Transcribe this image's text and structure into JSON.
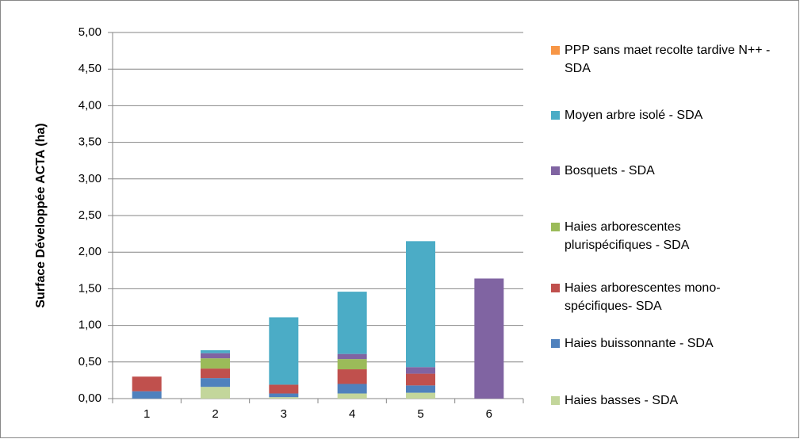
{
  "chart_data": {
    "type": "stacked_bar",
    "y_label": "Surface Développée ACTA (ha)",
    "categories": [
      "1",
      "2",
      "3",
      "4",
      "5",
      "6"
    ],
    "ylim": [
      0,
      5
    ],
    "yticks": [
      {
        "value": 0,
        "label": "0,00"
      },
      {
        "value": 0.5,
        "label": "0,50"
      },
      {
        "value": 1,
        "label": "1,00"
      },
      {
        "value": 1.5,
        "label": "1,50"
      },
      {
        "value": 2,
        "label": "2,00"
      },
      {
        "value": 2.5,
        "label": "2,50"
      },
      {
        "value": 3,
        "label": "3,00"
      },
      {
        "value": 3.5,
        "label": "3,50"
      },
      {
        "value": 4,
        "label": "4,00"
      },
      {
        "value": 4.5,
        "label": "4,50"
      },
      {
        "value": 5,
        "label": "5,00"
      }
    ],
    "grid": true,
    "legend": "right",
    "series": [
      {
        "name": "Haies basses - SDA",
        "color": "#c3d69b",
        "values": [
          0,
          0.16,
          0.02,
          0.07,
          0.08,
          0
        ]
      },
      {
        "name": "Haies buissonnante - SDA",
        "color": "#4f81bd",
        "values": [
          0.1,
          0.12,
          0.05,
          0.13,
          0.1,
          0
        ]
      },
      {
        "name": "Haies arborescentes mono-spécifiques- SDA",
        "color": "#c0504d",
        "values": [
          0.2,
          0.13,
          0.12,
          0.2,
          0.16,
          0
        ]
      },
      {
        "name": "Haies arborescentes plurispécifiques - SDA",
        "color": "#9bbb59",
        "values": [
          0,
          0.14,
          0,
          0.14,
          0,
          0
        ]
      },
      {
        "name": "Bosquets - SDA",
        "color": "#8064a2",
        "values": [
          0,
          0.07,
          0,
          0.07,
          0.09,
          1.64
        ]
      },
      {
        "name": "Moyen arbre isolé - SDA",
        "color": "#4bacc6",
        "values": [
          0,
          0.04,
          0.92,
          0.85,
          1.72,
          0
        ]
      },
      {
        "name": "PPP sans maet recolte tardive N++ - SDA",
        "color": "#f79646",
        "values": [
          0,
          0,
          0,
          0,
          0,
          0
        ]
      }
    ]
  }
}
